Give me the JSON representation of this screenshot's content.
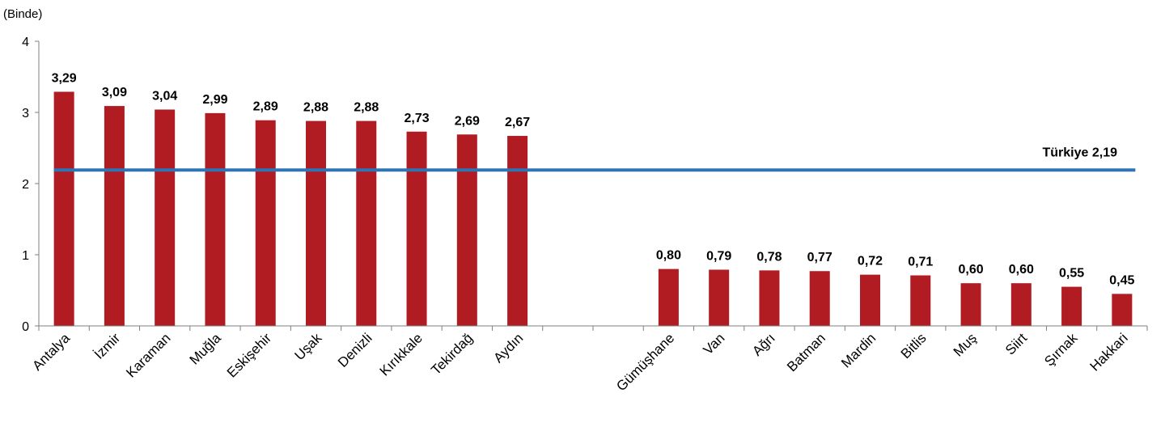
{
  "chart_data": {
    "type": "bar",
    "unit_label": "(Binde)",
    "categories": [
      "Antalya",
      "İzmir",
      "Karaman",
      "Muğla",
      "Eskişehir",
      "Uşak",
      "Denizli",
      "Kırıkkale",
      "Tekirdağ",
      "Aydın",
      "",
      "",
      "Gümüşhane",
      "Van",
      "Ağrı",
      "Batman",
      "Mardin",
      "Bitlis",
      "Muş",
      "Siirt",
      "Şırnak",
      "Hakkari"
    ],
    "values": [
      3.29,
      3.09,
      3.04,
      2.99,
      2.89,
      2.88,
      2.88,
      2.73,
      2.69,
      2.67,
      null,
      null,
      0.8,
      0.79,
      0.78,
      0.77,
      0.72,
      0.71,
      0.6,
      0.6,
      0.55,
      0.45
    ],
    "value_labels": [
      "3,29",
      "3,09",
      "3,04",
      "2,99",
      "2,89",
      "2,88",
      "2,88",
      "2,73",
      "2,69",
      "2,67",
      "",
      "",
      "0,80",
      "0,79",
      "0,78",
      "0,77",
      "0,72",
      "0,71",
      "0,60",
      "0,60",
      "0,55",
      "0,45"
    ],
    "ylim": [
      0,
      4
    ],
    "yticks": [
      0,
      1,
      2,
      3,
      4
    ],
    "reference_line": {
      "label": "Türkiye",
      "value": 2.19,
      "value_label": "2,19",
      "color": "#2e75b6"
    },
    "bar_color": "#b11c22",
    "grid": false
  }
}
